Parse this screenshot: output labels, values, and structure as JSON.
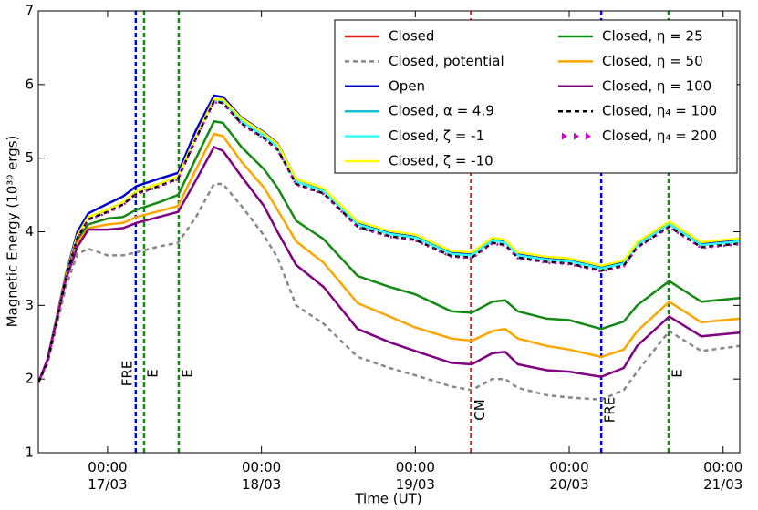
{
  "chart_data": {
    "type": "line",
    "xlabel": "Time (UT)",
    "ylabel": "Magnetic Energy (10³⁰ ergs)",
    "xlim": [
      -10.8,
      98.6
    ],
    "ylim": [
      1,
      7
    ],
    "yticks": [
      1,
      2,
      3,
      4,
      5,
      6,
      7
    ],
    "xticks": [
      {
        "value": 0,
        "label": "00:00 17/03"
      },
      {
        "value": 24,
        "label": "00:00 18/03"
      },
      {
        "value": 48,
        "label": "00:00 19/03"
      },
      {
        "value": 72,
        "label": "00:00 20/03"
      },
      {
        "value": 96,
        "label": "00:00 21/03"
      }
    ],
    "x": [
      -10.8,
      -9.4,
      -8,
      -6.5,
      -4.7,
      -3,
      0,
      2.4,
      4.5,
      8,
      11,
      13.8,
      16.6,
      18,
      20.9,
      24.4,
      26.5,
      29.4,
      33.7,
      39,
      44,
      48,
      53.6,
      56.8,
      60,
      62,
      64,
      68.5,
      72,
      77,
      80.5,
      82.6,
      87.6,
      92.6,
      98.6
    ],
    "series": [
      {
        "name": "Closed",
        "color": "#e41a1c",
        "dash": "solid",
        "values": [
          1.95,
          2.25,
          2.8,
          3.4,
          3.95,
          4.2,
          4.3,
          4.4,
          4.55,
          4.65,
          4.75,
          5.3,
          5.8,
          5.78,
          5.5,
          5.3,
          5.15,
          4.68,
          4.55,
          4.1,
          3.97,
          3.92,
          3.7,
          3.68,
          3.88,
          3.85,
          3.68,
          3.62,
          3.6,
          3.5,
          3.57,
          3.82,
          4.1,
          3.82,
          3.87
        ]
      },
      {
        "name": "Closed, potential",
        "color": "#888888",
        "dash": "dashed",
        "values": [
          1.95,
          2.2,
          2.7,
          3.25,
          3.7,
          3.77,
          3.68,
          3.68,
          3.72,
          3.8,
          3.85,
          4.2,
          4.65,
          4.65,
          4.35,
          3.95,
          3.65,
          3.0,
          2.75,
          2.3,
          2.15,
          2.05,
          1.9,
          1.85,
          2.0,
          2.0,
          1.88,
          1.78,
          1.75,
          1.72,
          1.85,
          2.1,
          2.65,
          2.38,
          2.45
        ]
      },
      {
        "name": "Open",
        "color": "#0000cc",
        "dash": "solid",
        "values": [
          1.95,
          2.26,
          2.82,
          3.42,
          4.0,
          4.25,
          4.38,
          4.48,
          4.62,
          4.72,
          4.8,
          5.38,
          5.85,
          5.83,
          5.55,
          5.35,
          5.2,
          4.72,
          4.58,
          4.12,
          3.99,
          3.94,
          3.72,
          3.7,
          3.9,
          3.87,
          3.7,
          3.64,
          3.62,
          3.52,
          3.59,
          3.84,
          4.12,
          3.84,
          3.89
        ]
      },
      {
        "name": "Closed, α = 4.9",
        "color": "#17becf",
        "dash": "solid",
        "values": [
          1.95,
          2.25,
          2.8,
          3.4,
          3.95,
          4.2,
          4.3,
          4.4,
          4.55,
          4.65,
          4.75,
          5.3,
          5.8,
          5.78,
          5.5,
          5.3,
          5.15,
          4.68,
          4.55,
          4.1,
          3.97,
          3.92,
          3.7,
          3.68,
          3.88,
          3.85,
          3.68,
          3.62,
          3.6,
          3.5,
          3.57,
          3.82,
          4.1,
          3.82,
          3.87
        ]
      },
      {
        "name": "Closed, ζ = -1",
        "color": "#33ffff",
        "dash": "solid",
        "values": [
          1.95,
          2.25,
          2.8,
          3.4,
          3.95,
          4.2,
          4.3,
          4.4,
          4.55,
          4.65,
          4.75,
          5.3,
          5.8,
          5.78,
          5.5,
          5.3,
          5.15,
          4.68,
          4.55,
          4.1,
          3.97,
          3.92,
          3.7,
          3.68,
          3.88,
          3.85,
          3.68,
          3.62,
          3.6,
          3.5,
          3.57,
          3.82,
          4.1,
          3.82,
          3.87
        ]
      },
      {
        "name": "Closed, ζ = -10",
        "color": "#ffff00",
        "dash": "solid",
        "values": [
          1.95,
          2.25,
          2.8,
          3.4,
          3.95,
          4.2,
          4.3,
          4.4,
          4.55,
          4.65,
          4.75,
          5.3,
          5.8,
          5.8,
          5.54,
          5.34,
          5.19,
          4.72,
          4.59,
          4.14,
          4.01,
          3.96,
          3.74,
          3.72,
          3.92,
          3.89,
          3.72,
          3.66,
          3.64,
          3.54,
          3.61,
          3.86,
          4.14,
          3.86,
          3.91
        ]
      },
      {
        "name": "Closed, η = 25",
        "color": "#138a13",
        "dash": "solid",
        "values": [
          1.95,
          2.25,
          2.8,
          3.4,
          3.9,
          4.1,
          4.18,
          4.2,
          4.3,
          4.4,
          4.5,
          5.0,
          5.5,
          5.48,
          5.15,
          4.85,
          4.6,
          4.15,
          3.9,
          3.4,
          3.25,
          3.15,
          2.92,
          2.9,
          3.05,
          3.07,
          2.92,
          2.82,
          2.8,
          2.68,
          2.78,
          3.0,
          3.33,
          3.05,
          3.1
        ]
      },
      {
        "name": "Closed, η = 50",
        "color": "#ffa500",
        "dash": "solid",
        "values": [
          1.95,
          2.25,
          2.8,
          3.38,
          3.85,
          4.05,
          4.1,
          4.12,
          4.2,
          4.28,
          4.35,
          4.85,
          5.33,
          5.3,
          4.95,
          4.6,
          4.3,
          3.87,
          3.58,
          3.03,
          2.85,
          2.7,
          2.55,
          2.52,
          2.65,
          2.68,
          2.55,
          2.45,
          2.4,
          2.3,
          2.4,
          2.65,
          3.05,
          2.77,
          2.82
        ]
      },
      {
        "name": "Closed, η = 100",
        "color": "#800080",
        "dash": "solid",
        "values": [
          1.95,
          2.25,
          2.78,
          3.35,
          3.8,
          4.03,
          4.03,
          4.05,
          4.12,
          4.2,
          4.27,
          4.7,
          5.15,
          5.1,
          4.75,
          4.35,
          4.0,
          3.55,
          3.25,
          2.68,
          2.5,
          2.38,
          2.22,
          2.2,
          2.35,
          2.37,
          2.2,
          2.12,
          2.1,
          2.03,
          2.15,
          2.45,
          2.85,
          2.58,
          2.63
        ]
      },
      {
        "name": "Closed, η₄ = 100",
        "color": "#000000",
        "dash": "dashed",
        "values": [
          1.95,
          2.23,
          2.77,
          3.37,
          3.92,
          4.17,
          4.27,
          4.37,
          4.52,
          4.62,
          4.72,
          5.27,
          5.77,
          5.75,
          5.47,
          5.27,
          5.12,
          4.65,
          4.52,
          4.07,
          3.94,
          3.89,
          3.67,
          3.65,
          3.85,
          3.82,
          3.65,
          3.59,
          3.57,
          3.47,
          3.54,
          3.79,
          4.07,
          3.79,
          3.84
        ]
      },
      {
        "name": "Closed, η₄ = 200",
        "color": "#cc00cc",
        "dash": "dotted",
        "values": [
          1.95,
          2.22,
          2.76,
          3.36,
          3.91,
          4.16,
          4.26,
          4.36,
          4.51,
          4.61,
          4.71,
          5.26,
          5.76,
          5.74,
          5.46,
          5.26,
          5.11,
          4.64,
          4.51,
          4.06,
          3.93,
          3.88,
          3.66,
          3.64,
          3.84,
          3.81,
          3.64,
          3.58,
          3.56,
          3.46,
          3.53,
          3.78,
          4.06,
          3.78,
          3.83
        ]
      }
    ],
    "events": [
      {
        "x": 4.4,
        "label": "FRE",
        "color": "#0000ee"
      },
      {
        "x": 5.7,
        "label": "E",
        "color": "#138a13"
      },
      {
        "x": 11.1,
        "label": "E",
        "color": "#138a13"
      },
      {
        "x": 56.7,
        "label": "CM",
        "color": "#e41a1c"
      },
      {
        "x": 77,
        "label": "FRE",
        "color": "#0000ee"
      },
      {
        "x": 87.5,
        "label": "E",
        "color": "#138a13"
      }
    ]
  }
}
